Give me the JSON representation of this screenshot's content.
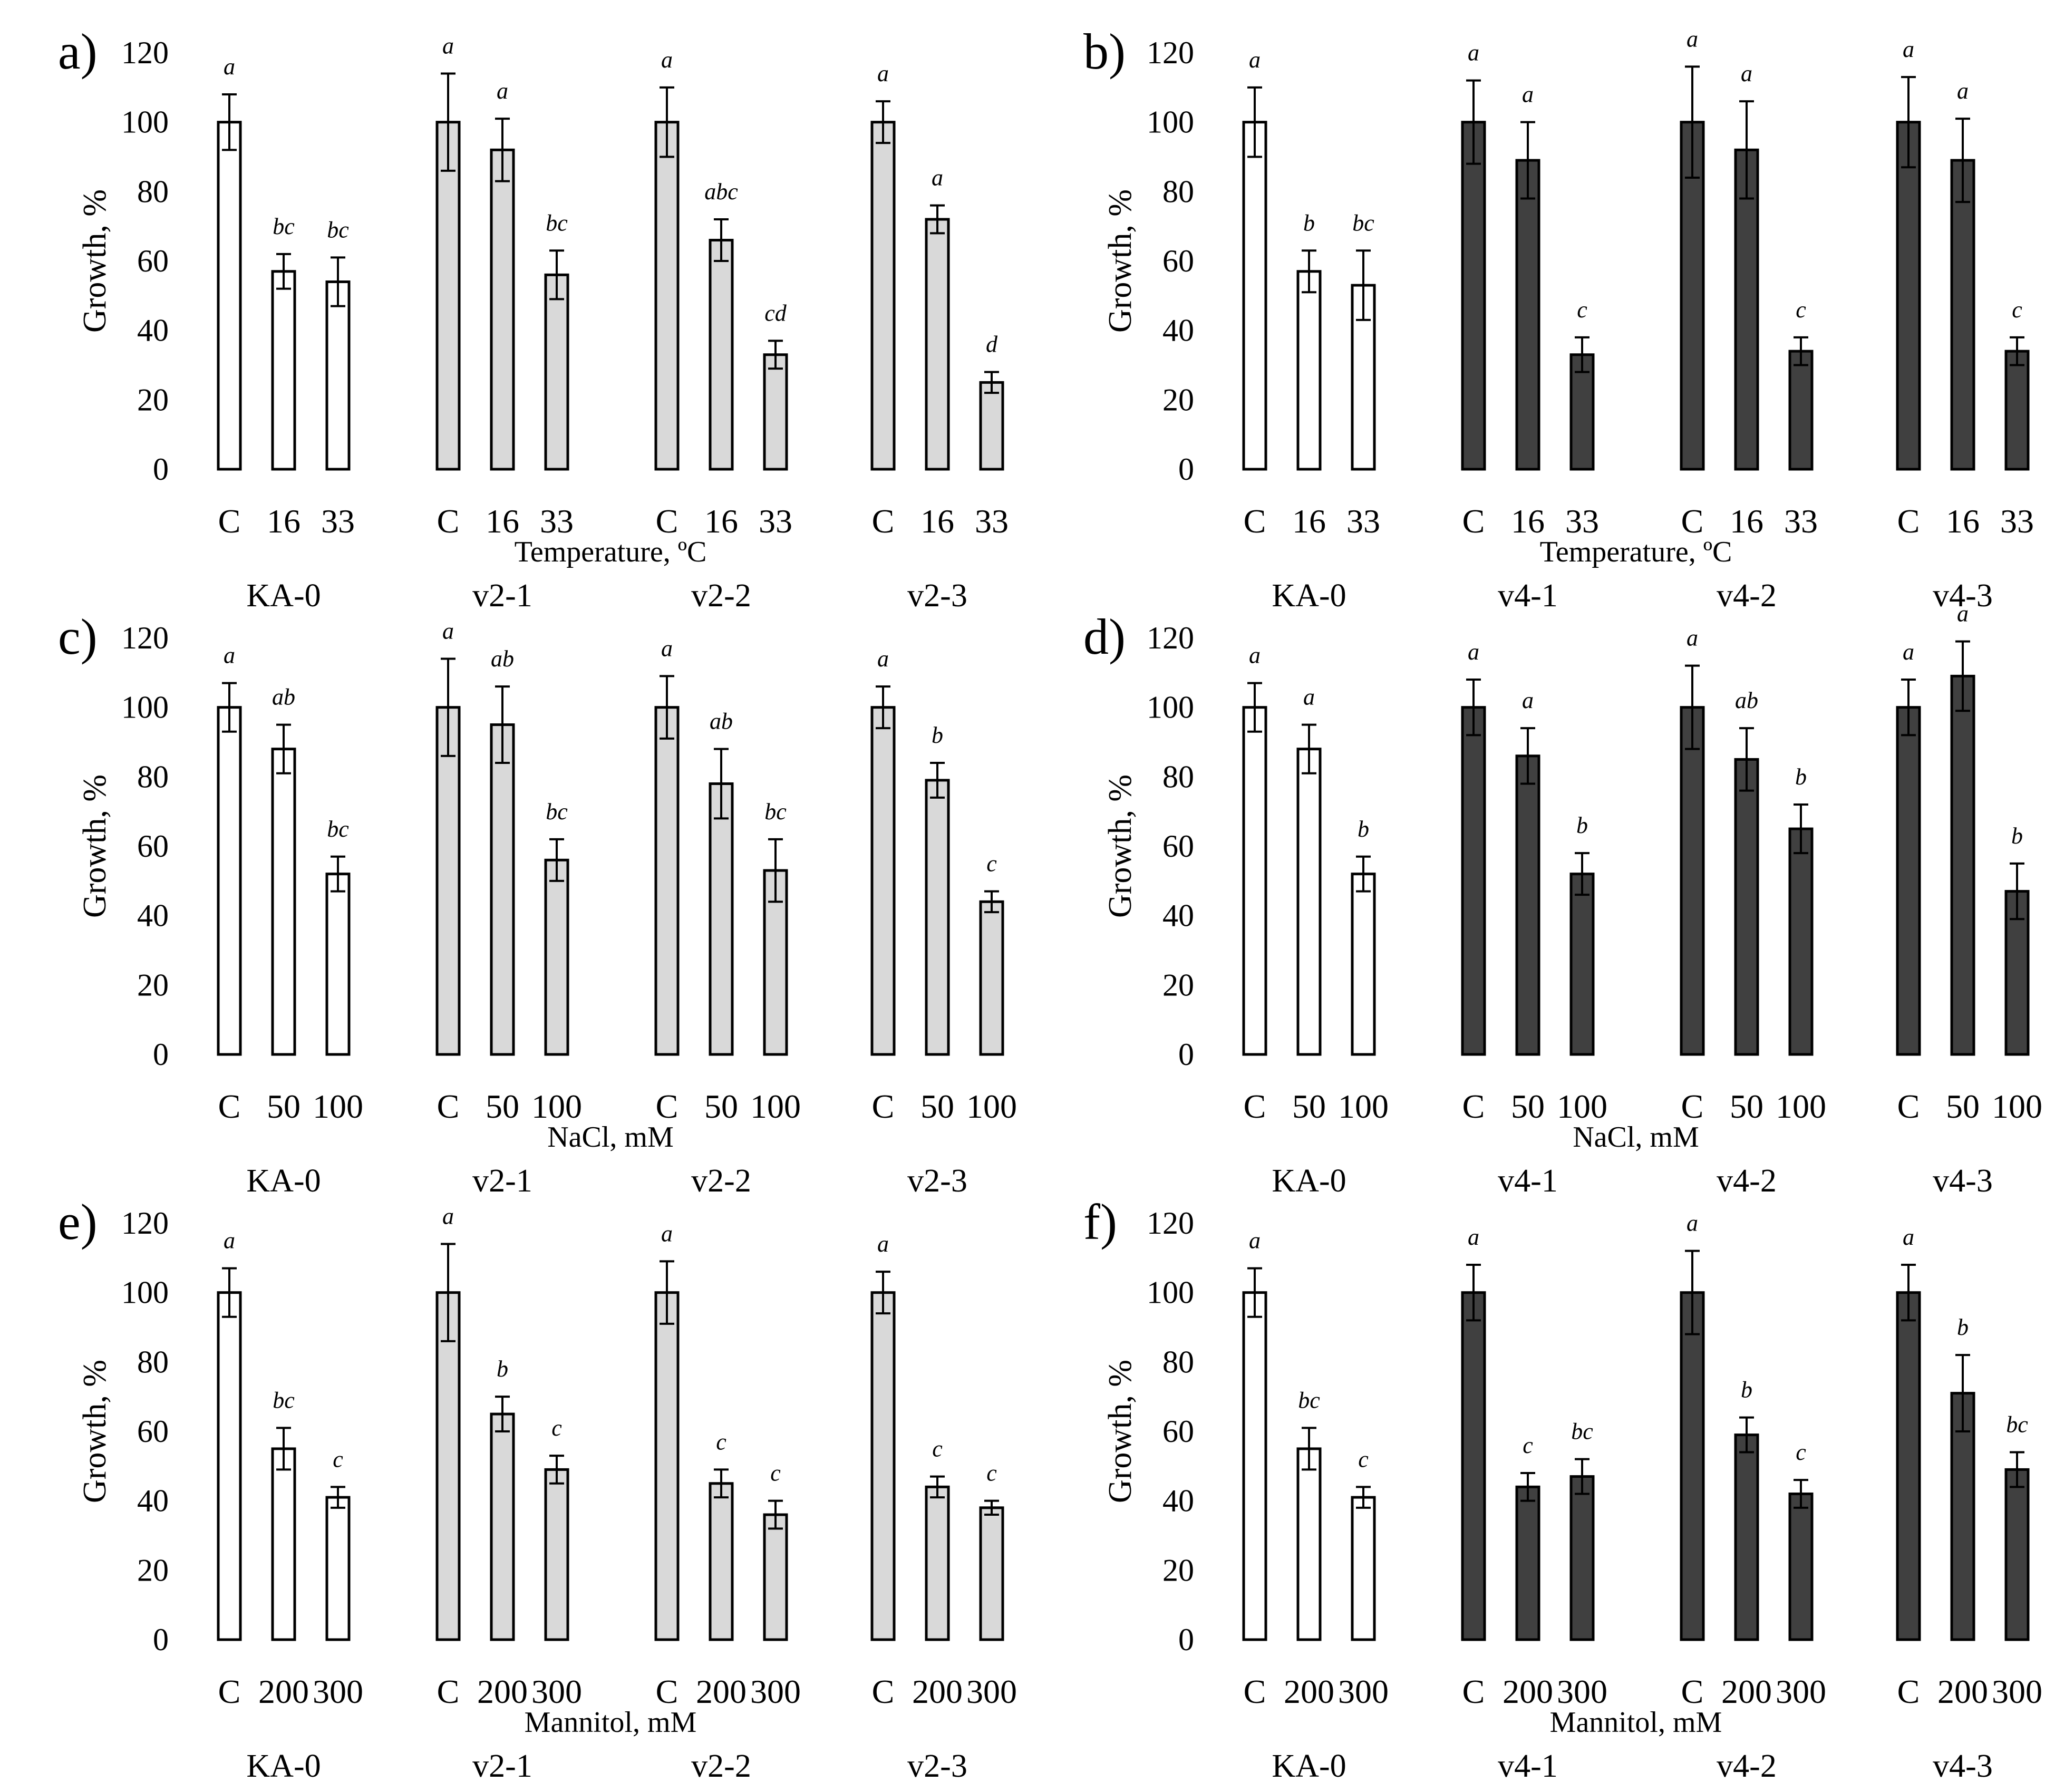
{
  "chart_data": [
    {
      "panel": "a)",
      "type": "bar",
      "ylabel": "Growth, %",
      "ylim": [
        0,
        120
      ],
      "yticks": [
        "0",
        "20",
        "40",
        "60",
        "80",
        "100",
        "120"
      ],
      "xlabel": "Temperature, ºC",
      "categories": [
        "C",
        "16",
        "33"
      ],
      "groups": [
        {
          "name": "KA-0",
          "fill": "#ffffff",
          "values": [
            100,
            57,
            54
          ],
          "errors": [
            8,
            5,
            7
          ],
          "letters": [
            "a",
            "bc",
            "bc"
          ]
        },
        {
          "name": "v2-1",
          "fill": "#d9d9d9",
          "values": [
            100,
            92,
            56
          ],
          "errors": [
            14,
            9,
            7
          ],
          "letters": [
            "a",
            "a",
            "bc"
          ]
        },
        {
          "name": "v2-2",
          "fill": "#d9d9d9",
          "values": [
            100,
            66,
            33
          ],
          "errors": [
            10,
            6,
            4
          ],
          "letters": [
            "a",
            "abc",
            "cd"
          ]
        },
        {
          "name": "v2-3",
          "fill": "#d9d9d9",
          "values": [
            100,
            72,
            25
          ],
          "errors": [
            6,
            4,
            3
          ],
          "letters": [
            "a",
            "a",
            "d"
          ]
        }
      ]
    },
    {
      "panel": "b)",
      "type": "bar",
      "ylabel": "Growth, %",
      "ylim": [
        0,
        120
      ],
      "yticks": [
        "0",
        "20",
        "40",
        "60",
        "80",
        "100",
        "120"
      ],
      "xlabel": "Temperature, ºC",
      "categories": [
        "C",
        "16",
        "33"
      ],
      "groups": [
        {
          "name": "KA-0",
          "fill": "#ffffff",
          "values": [
            100,
            57,
            53
          ],
          "errors": [
            10,
            6,
            10
          ],
          "letters": [
            "a",
            "b",
            "bc"
          ]
        },
        {
          "name": "v4-1",
          "fill": "#404040",
          "values": [
            100,
            89,
            33
          ],
          "errors": [
            12,
            11,
            5
          ],
          "letters": [
            "a",
            "a",
            "c"
          ]
        },
        {
          "name": "v4-2",
          "fill": "#404040",
          "values": [
            100,
            92,
            34
          ],
          "errors": [
            16,
            14,
            4
          ],
          "letters": [
            "a",
            "a",
            "c"
          ]
        },
        {
          "name": "v4-3",
          "fill": "#404040",
          "values": [
            100,
            89,
            34
          ],
          "errors": [
            13,
            12,
            4
          ],
          "letters": [
            "a",
            "a",
            "c"
          ]
        }
      ]
    },
    {
      "panel": "c)",
      "type": "bar",
      "ylabel": "Growth, %",
      "ylim": [
        0,
        120
      ],
      "yticks": [
        "0",
        "20",
        "40",
        "60",
        "80",
        "100",
        "120"
      ],
      "xlabel": "NaCl, mM",
      "categories": [
        "C",
        "50",
        "100"
      ],
      "groups": [
        {
          "name": "KA-0",
          "fill": "#ffffff",
          "values": [
            100,
            88,
            52
          ],
          "errors": [
            7,
            7,
            5
          ],
          "letters": [
            "a",
            "ab",
            "bc"
          ]
        },
        {
          "name": "v2-1",
          "fill": "#d9d9d9",
          "values": [
            100,
            95,
            56
          ],
          "errors": [
            14,
            11,
            6
          ],
          "letters": [
            "a",
            "ab",
            "bc"
          ]
        },
        {
          "name": "v2-2",
          "fill": "#d9d9d9",
          "values": [
            100,
            78,
            53
          ],
          "errors": [
            9,
            10,
            9
          ],
          "letters": [
            "a",
            "ab",
            "bc"
          ]
        },
        {
          "name": "v2-3",
          "fill": "#d9d9d9",
          "values": [
            100,
            79,
            44
          ],
          "errors": [
            6,
            5,
            3
          ],
          "letters": [
            "a",
            "b",
            "c"
          ]
        }
      ]
    },
    {
      "panel": "d)",
      "type": "bar",
      "ylabel": "Growth, %",
      "ylim": [
        0,
        120
      ],
      "yticks": [
        "0",
        "20",
        "40",
        "60",
        "80",
        "100",
        "120"
      ],
      "xlabel": "NaCl, mM",
      "categories": [
        "C",
        "50",
        "100"
      ],
      "groups": [
        {
          "name": "KA-0",
          "fill": "#ffffff",
          "values": [
            100,
            88,
            52
          ],
          "errors": [
            7,
            7,
            5
          ],
          "letters": [
            "a",
            "a",
            "b"
          ]
        },
        {
          "name": "v4-1",
          "fill": "#404040",
          "values": [
            100,
            86,
            52
          ],
          "errors": [
            8,
            8,
            6
          ],
          "letters": [
            "a",
            "a",
            "b"
          ]
        },
        {
          "name": "v4-2",
          "fill": "#404040",
          "values": [
            100,
            85,
            65
          ],
          "errors": [
            12,
            9,
            7
          ],
          "letters": [
            "a",
            "ab",
            "b"
          ]
        },
        {
          "name": "v4-3",
          "fill": "#404040",
          "values": [
            100,
            109,
            47
          ],
          "errors": [
            8,
            10,
            8
          ],
          "letters": [
            "a",
            "a",
            "b"
          ]
        }
      ]
    },
    {
      "panel": "e)",
      "type": "bar",
      "ylabel": "Growth, %",
      "ylim": [
        0,
        120
      ],
      "yticks": [
        "0",
        "20",
        "40",
        "60",
        "80",
        "100",
        "120"
      ],
      "xlabel": "Mannitol, mM",
      "categories": [
        "C",
        "200",
        "300"
      ],
      "groups": [
        {
          "name": "KA-0",
          "fill": "#ffffff",
          "values": [
            100,
            55,
            41
          ],
          "errors": [
            7,
            6,
            3
          ],
          "letters": [
            "a",
            "bc",
            "c"
          ]
        },
        {
          "name": "v2-1",
          "fill": "#d9d9d9",
          "values": [
            100,
            65,
            49
          ],
          "errors": [
            14,
            5,
            4
          ],
          "letters": [
            "a",
            "b",
            "c"
          ]
        },
        {
          "name": "v2-2",
          "fill": "#d9d9d9",
          "values": [
            100,
            45,
            36
          ],
          "errors": [
            9,
            4,
            4
          ],
          "letters": [
            "a",
            "c",
            "c"
          ]
        },
        {
          "name": "v2-3",
          "fill": "#d9d9d9",
          "values": [
            100,
            44,
            38
          ],
          "errors": [
            6,
            3,
            2
          ],
          "letters": [
            "a",
            "c",
            "c"
          ]
        }
      ]
    },
    {
      "panel": "f)",
      "type": "bar",
      "ylabel": "Growth, %",
      "ylim": [
        0,
        120
      ],
      "yticks": [
        "0",
        "20",
        "40",
        "60",
        "80",
        "100",
        "120"
      ],
      "xlabel": "Mannitol, mM",
      "categories": [
        "C",
        "200",
        "300"
      ],
      "groups": [
        {
          "name": "KA-0",
          "fill": "#ffffff",
          "values": [
            100,
            55,
            41
          ],
          "errors": [
            7,
            6,
            3
          ],
          "letters": [
            "a",
            "bc",
            "c"
          ]
        },
        {
          "name": "v4-1",
          "fill": "#404040",
          "values": [
            100,
            44,
            47
          ],
          "errors": [
            8,
            4,
            5
          ],
          "letters": [
            "a",
            "c",
            "bc"
          ]
        },
        {
          "name": "v4-2",
          "fill": "#404040",
          "values": [
            100,
            59,
            42
          ],
          "errors": [
            12,
            5,
            4
          ],
          "letters": [
            "a",
            "b",
            "c"
          ]
        },
        {
          "name": "v4-3",
          "fill": "#404040",
          "values": [
            100,
            71,
            49
          ],
          "errors": [
            8,
            11,
            5
          ],
          "letters": [
            "a",
            "b",
            "bc"
          ]
        }
      ]
    }
  ]
}
